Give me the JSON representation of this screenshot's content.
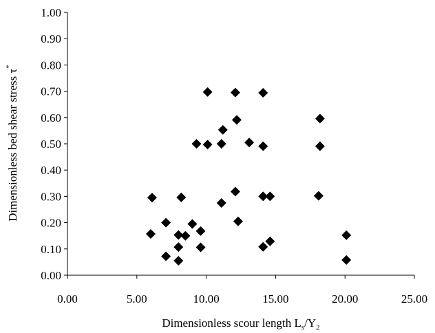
{
  "chart_data": {
    "type": "scatter",
    "xlabel": {
      "main": "Dimensionless scour length L",
      "sub1": "s",
      "mid": "/Y",
      "sub2": "2"
    },
    "ylabel": {
      "main": "Dimensionless bed shear stress τ",
      "sup": "*"
    },
    "xlim": [
      0,
      25
    ],
    "ylim": [
      0,
      1
    ],
    "x_ticks": [
      0,
      5,
      10,
      15,
      20,
      25
    ],
    "y_ticks": [
      0,
      0.1,
      0.2,
      0.3,
      0.4,
      0.5,
      0.6,
      0.7,
      0.8,
      0.9,
      1.0
    ],
    "x_tick_labels": [
      "0.00",
      "5.00",
      "10.00",
      "15.00",
      "20.00",
      "25.00"
    ],
    "y_tick_labels": [
      "0.00",
      "0.10",
      "0.20",
      "0.30",
      "0.40",
      "0.50",
      "0.60",
      "0.70",
      "0.80",
      "0.90",
      "1.00"
    ],
    "grid": false,
    "marker": "diamond",
    "marker_color": "#000000",
    "points": [
      {
        "x": 6.1,
        "y": 0.295
      },
      {
        "x": 6.0,
        "y": 0.157
      },
      {
        "x": 7.1,
        "y": 0.2
      },
      {
        "x": 7.1,
        "y": 0.072
      },
      {
        "x": 8.0,
        "y": 0.153
      },
      {
        "x": 8.0,
        "y": 0.107
      },
      {
        "x": 8.0,
        "y": 0.055
      },
      {
        "x": 8.2,
        "y": 0.296
      },
      {
        "x": 8.5,
        "y": 0.15
      },
      {
        "x": 9.0,
        "y": 0.195
      },
      {
        "x": 9.3,
        "y": 0.5
      },
      {
        "x": 9.6,
        "y": 0.168
      },
      {
        "x": 9.6,
        "y": 0.106
      },
      {
        "x": 10.1,
        "y": 0.697
      },
      {
        "x": 10.1,
        "y": 0.497
      },
      {
        "x": 11.1,
        "y": 0.5
      },
      {
        "x": 11.2,
        "y": 0.553
      },
      {
        "x": 11.1,
        "y": 0.275
      },
      {
        "x": 12.1,
        "y": 0.695
      },
      {
        "x": 12.2,
        "y": 0.591
      },
      {
        "x": 12.1,
        "y": 0.318
      },
      {
        "x": 12.3,
        "y": 0.205
      },
      {
        "x": 13.1,
        "y": 0.505
      },
      {
        "x": 14.1,
        "y": 0.694
      },
      {
        "x": 14.1,
        "y": 0.491
      },
      {
        "x": 14.1,
        "y": 0.3
      },
      {
        "x": 14.1,
        "y": 0.108
      },
      {
        "x": 14.6,
        "y": 0.3
      },
      {
        "x": 14.6,
        "y": 0.129
      },
      {
        "x": 18.2,
        "y": 0.596
      },
      {
        "x": 18.2,
        "y": 0.491
      },
      {
        "x": 18.1,
        "y": 0.302
      },
      {
        "x": 20.1,
        "y": 0.152
      },
      {
        "x": 20.1,
        "y": 0.058
      }
    ]
  }
}
